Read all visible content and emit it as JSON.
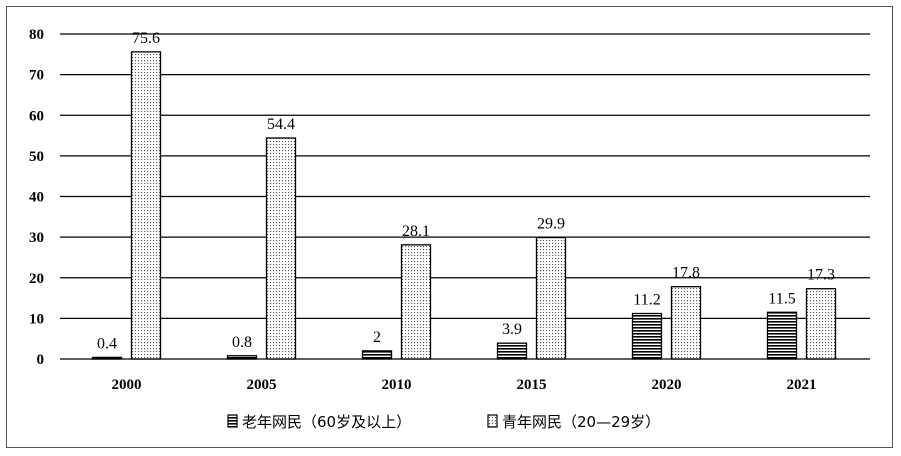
{
  "chart_data": {
    "type": "bar",
    "title": "",
    "xlabel": "",
    "ylabel": "",
    "categories": [
      "2000",
      "2005",
      "2010",
      "2015",
      "2020",
      "2021"
    ],
    "series": [
      {
        "name": "老年网民（60岁及以上）",
        "values": [
          0.4,
          0.8,
          2,
          3.9,
          11.2,
          11.5
        ],
        "labels": [
          "0.4",
          "0.8",
          "2",
          "3.9",
          "11.2",
          "11.5"
        ],
        "pattern": "horizontal-stripes"
      },
      {
        "name": "青年网民（20—29岁）",
        "values": [
          75.6,
          54.4,
          28.1,
          29.9,
          17.8,
          17.3
        ],
        "labels": [
          "75.6",
          "54.4",
          "28.1",
          "29.9",
          "17.8",
          "17.3"
        ],
        "pattern": "dots"
      }
    ],
    "ylim": [
      0,
      80
    ],
    "yticks": [
      "0",
      "10",
      "20",
      "30",
      "40",
      "50",
      "60",
      "70",
      "80"
    ],
    "grid": true,
    "legend_position": "bottom"
  }
}
